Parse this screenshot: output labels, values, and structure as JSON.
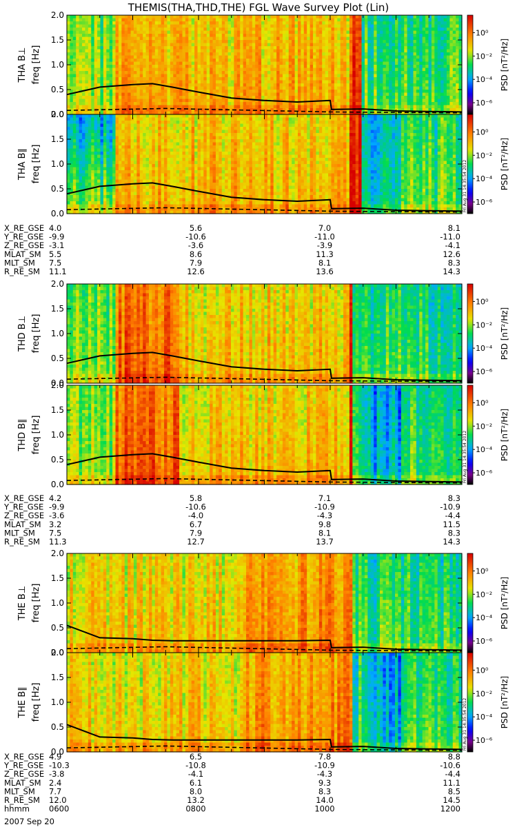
{
  "chart_data": {
    "type": "heatmap",
    "title": "THEMIS(THA,THD,THE) FGL Wave Survey Plot (Lin)",
    "time_range": [
      "0600",
      "1200"
    ],
    "date_label": "2007 Sep 20",
    "freq_axis": {
      "range": [
        0.0,
        2.0
      ],
      "ticks": [
        "0.0",
        "0.5",
        "1.0",
        "1.5",
        "2.0"
      ],
      "unit": "freq [Hz]"
    },
    "colorbar": {
      "label": "PSD [nT²/Hz]",
      "scale": "log",
      "range_exp": [
        -7,
        1.5
      ],
      "ticks": [
        {
          "exp": 0,
          "label": "10⁰"
        },
        {
          "exp": -2,
          "label": "10⁻²"
        },
        {
          "exp": -4,
          "label": "10⁻⁴"
        },
        {
          "exp": -6,
          "label": "10⁻⁶"
        }
      ]
    },
    "timestamp": "Fri Aug 31 14:35:54 2012",
    "probes": [
      {
        "id": "THA",
        "panels": [
          {
            "label": "THA B⊥",
            "freq_label": "freq [Hz]"
          },
          {
            "label": "THA B∥",
            "freq_label": "freq [Hz]"
          }
        ],
        "ephemeris": [
          {
            "name": "X_RE_GSE",
            "values": [
              "4.0",
              "5.6",
              "7.0",
              "8.1"
            ]
          },
          {
            "name": "Y_RE_GSE",
            "values": [
              "-9.9",
              "-10.6",
              "-11.0",
              "-11.0"
            ]
          },
          {
            "name": "Z_RE_GSE",
            "values": [
              "-3.1",
              "-3.6",
              "-3.9",
              "-4.1"
            ]
          },
          {
            "name": "MLAT_SM",
            "values": [
              "5.5",
              "8.6",
              "11.3",
              "12.6"
            ]
          },
          {
            "name": "MLT_SM",
            "values": [
              "7.5",
              "7.9",
              "8.1",
              "8.3"
            ]
          },
          {
            "name": "R_RE_SM",
            "values": [
              "11.1",
              "12.6",
              "13.6",
              "14.3"
            ]
          }
        ]
      },
      {
        "id": "THD",
        "panels": [
          {
            "label": "THD B⊥",
            "freq_label": "freq [Hz]"
          },
          {
            "label": "THD B∥",
            "freq_label": "freq [Hz]"
          }
        ],
        "ephemeris": [
          {
            "name": "X_RE_GSE",
            "values": [
              "4.2",
              "5.8",
              "7.1",
              "8.3"
            ]
          },
          {
            "name": "Y_RE_GSE",
            "values": [
              "-9.9",
              "-10.6",
              "-10.9",
              "-10.9"
            ]
          },
          {
            "name": "Z_RE_GSE",
            "values": [
              "-3.6",
              "-4.0",
              "-4.3",
              "-4.4"
            ]
          },
          {
            "name": "MLAT_SM",
            "values": [
              "3.2",
              "6.7",
              "9.8",
              "11.5"
            ]
          },
          {
            "name": "MLT_SM",
            "values": [
              "7.5",
              "7.9",
              "8.1",
              "8.3"
            ]
          },
          {
            "name": "R_RE_SM",
            "values": [
              "11.3",
              "12.7",
              "13.7",
              "14.3"
            ]
          }
        ]
      },
      {
        "id": "THE",
        "panels": [
          {
            "label": "THE B⊥",
            "freq_label": "freq [Hz]"
          },
          {
            "label": "THE B∥",
            "freq_label": "freq [Hz]"
          }
        ],
        "ephemeris": [
          {
            "name": "X_RE_GSE",
            "values": [
              "4.9",
              "6.5",
              "7.8",
              "8.8"
            ]
          },
          {
            "name": "Y_RE_GSE",
            "values": [
              "-10.3",
              "-10.8",
              "-10.9",
              "-10.6"
            ]
          },
          {
            "name": "Z_RE_GSE",
            "values": [
              "-3.8",
              "-4.1",
              "-4.3",
              "-4.4"
            ]
          },
          {
            "name": "MLAT_SM",
            "values": [
              "2.4",
              "6.1",
              "9.3",
              "11.1"
            ]
          },
          {
            "name": "MLT_SM",
            "values": [
              "7.7",
              "8.0",
              "8.3",
              "8.5"
            ]
          },
          {
            "name": "R_RE_SM",
            "values": [
              "12.0",
              "13.2",
              "14.0",
              "14.5"
            ]
          },
          {
            "name": "hhmm",
            "values": [
              "0600",
              "0800",
              "1000",
              "1200"
            ]
          }
        ]
      }
    ],
    "curves": {
      "solid_times": [
        6.0,
        6.5,
        7.0,
        7.3,
        7.6,
        8.0,
        8.5,
        9.0,
        9.5,
        10.0,
        10.02,
        10.5,
        11.0,
        11.5,
        12.0
      ],
      "solid_freq_tha": [
        0.4,
        0.55,
        0.6,
        0.62,
        0.55,
        0.45,
        0.33,
        0.28,
        0.25,
        0.28,
        0.1,
        0.11,
        0.07,
        0.06,
        0.05
      ],
      "solid_freq_the": [
        0.55,
        0.3,
        0.28,
        0.25,
        0.24,
        0.24,
        0.24,
        0.24,
        0.24,
        0.25,
        0.1,
        0.11,
        0.07,
        0.06,
        0.05
      ],
      "dashed_times": [
        6.0,
        7.5,
        10.0,
        12.0
      ],
      "dashed_freq": [
        0.08,
        0.12,
        0.05,
        0.03
      ]
    }
  }
}
